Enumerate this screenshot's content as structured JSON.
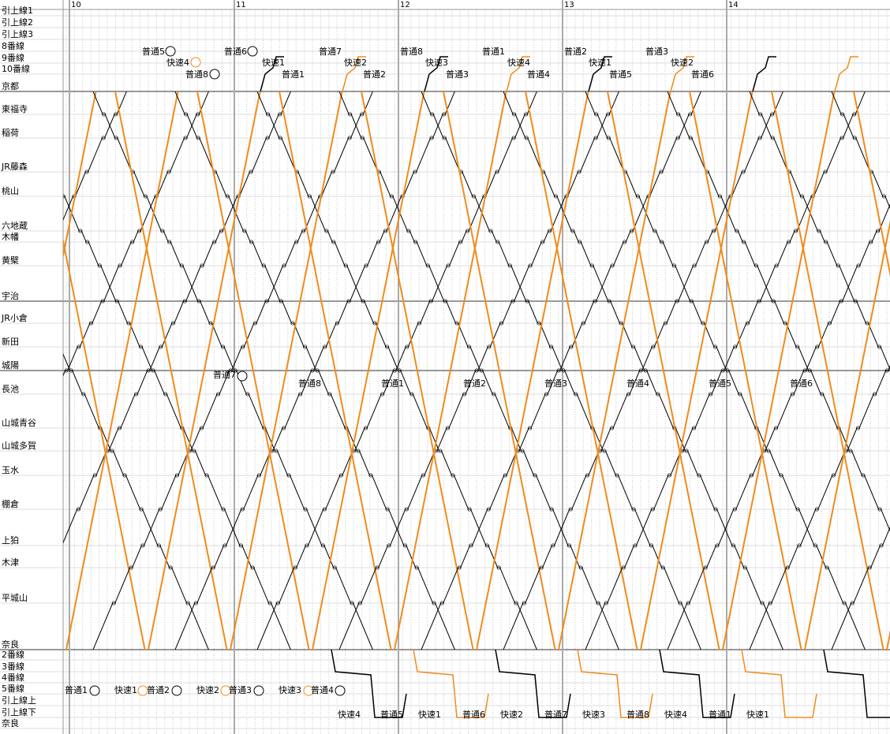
{
  "hours": [
    "10",
    "11",
    "12",
    "13",
    "14"
  ],
  "stations": [
    "引上線1",
    "引上線2",
    "引上線3",
    "8番線",
    "9番線",
    "10番線",
    "京都",
    "東福寺",
    "稲荷",
    "JR藤森",
    "桃山",
    "六地蔵",
    "木幡",
    "黄檗",
    "宇治",
    "JR小倉",
    "新田",
    "城陽",
    "長池",
    "山城青谷",
    "山城多賀",
    "玉水",
    "棚倉",
    "上狛",
    "木津",
    "平城山",
    "奈良",
    "2番線",
    "3番線",
    "4番線",
    "5番線",
    "引上線上",
    "引上線下",
    "奈良"
  ],
  "train_labels": [
    "普通5",
    "普通6",
    "普通7",
    "普通8",
    "普通1",
    "普通2",
    "普通3",
    "快速4",
    "快速1",
    "快速2",
    "快速3",
    "快速4",
    "快速1",
    "快速2",
    "普通8",
    "普通1",
    "普通2",
    "普通3",
    "普通4",
    "普通5",
    "普通6",
    "普通7",
    "普通8",
    "普通1",
    "普通2",
    "普通3",
    "普通4",
    "普通5",
    "普通6",
    "普通1",
    "快速1",
    "普通2",
    "快速2",
    "普通3",
    "快速3",
    "普通4",
    "快速4",
    "普通5",
    "快速1",
    "普通6",
    "快速2",
    "普通7",
    "快速3",
    "普通8",
    "快速4",
    "普通1",
    "快速1"
  ]
}
